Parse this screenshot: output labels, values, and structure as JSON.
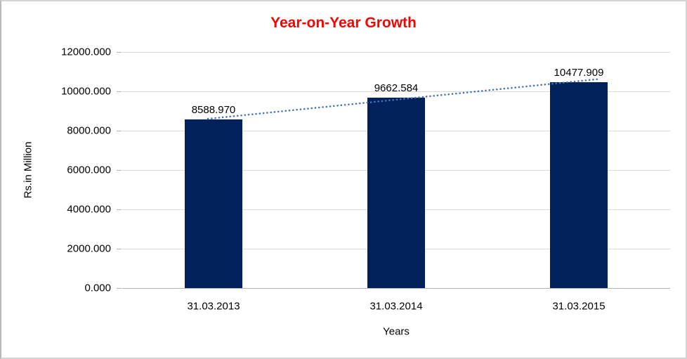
{
  "chart_data": {
    "type": "bar",
    "title": "Year-on-Year Growth",
    "title_color": "#fe0000",
    "xlabel": "Years",
    "ylabel": "Rs.in Million",
    "categories": [
      "31.03.2013",
      "31.03.2014",
      "31.03.2015"
    ],
    "values": [
      8588.97,
      9662.584,
      10477.909
    ],
    "value_labels": [
      "8588.970",
      "9662.584",
      "10477.909"
    ],
    "y_ticks": [
      "12000.000",
      "10000.000",
      "8000.000",
      "6000.000",
      "4000.000",
      "2000.000",
      "0.000"
    ],
    "ylim": [
      0,
      12000
    ],
    "grid": true,
    "legend": "none",
    "bar_color": "#02215c",
    "gridline_color": "#d9d9d9",
    "axis_line_color": "#b3b3b3",
    "trendline": {
      "type": "linear",
      "style": "dotted",
      "color": "#4576b4"
    }
  }
}
